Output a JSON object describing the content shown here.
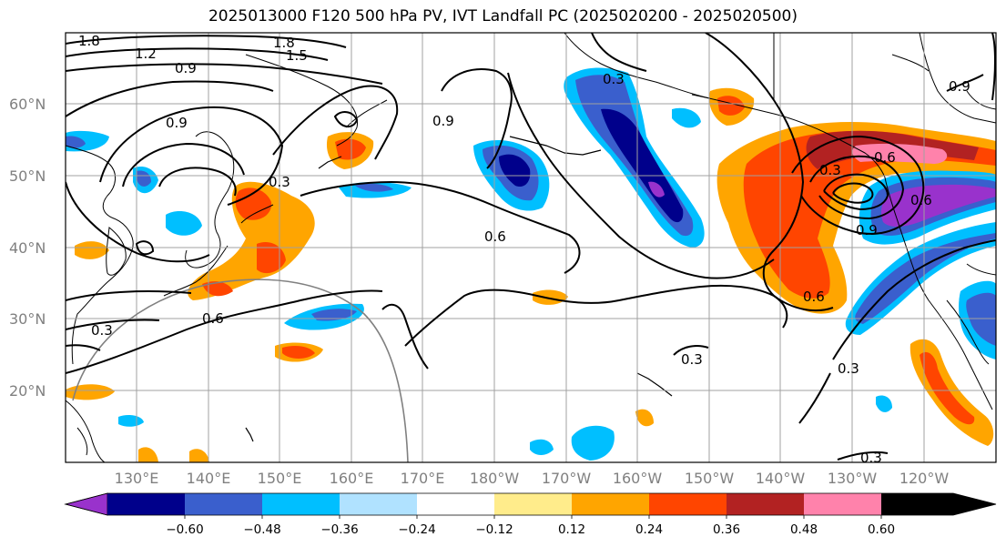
{
  "title": "2025013000 F120 500 hPa PV, IVT Landfall PC (2025020200 - 2025020500)",
  "map": {
    "lat_labels": [
      "60°N",
      "50°N",
      "40°N",
      "30°N",
      "20°N"
    ],
    "lon_labels": [
      "130°E",
      "140°E",
      "150°E",
      "160°E",
      "170°E",
      "180°W",
      "170°W",
      "160°W",
      "150°W",
      "140°W",
      "130°W",
      "120°W"
    ],
    "contour_labels": [
      "1.8",
      "1.2",
      "0.9",
      "1.8",
      "1.5",
      "0.9",
      "0.9",
      "0.3",
      "0.6",
      "0.6",
      "0.6",
      "0.3",
      "0.3",
      "0.3",
      "0.3",
      "0.6",
      "0.9",
      "0.6",
      "0.3",
      "0.9",
      "0.3"
    ]
  },
  "colorbar": {
    "ticks": [
      "−0.60",
      "−0.48",
      "−0.36",
      "−0.24",
      "−0.12",
      "0.12",
      "0.24",
      "0.36",
      "0.48",
      "0.60"
    ],
    "colors": [
      "#9932cc",
      "#00008b",
      "#3a5fcd",
      "#00bfff",
      "#b0e2ff",
      "#ffffff",
      "#ffec8b",
      "#ffa500",
      "#ff4500",
      "#b22222",
      "#ff82ab"
    ]
  }
}
